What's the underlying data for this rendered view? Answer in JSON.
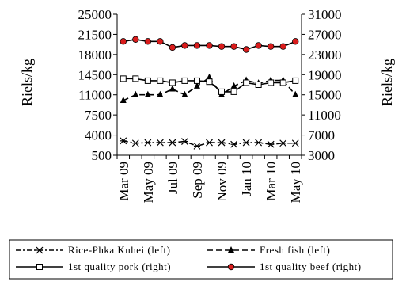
{
  "chart_data": {
    "type": "line",
    "categories": [
      "Mar 09",
      "Apr 09",
      "May 09",
      "Jun 09",
      "Jul 09",
      "Aug 09",
      "Sep 09",
      "Oct 09",
      "Nov 09",
      "Dec 09",
      "Jan 10",
      "Feb 10",
      "Mar 10",
      "Apr 10",
      "May 10"
    ],
    "x_tick_labels": [
      "Mar 09",
      "May 09",
      "Jul 09",
      "Sep 09",
      "Nov 09",
      "Jan 10",
      "Mar 10",
      "May 10"
    ],
    "y_left": {
      "label": "Riels/kg",
      "range": [
        500,
        25000
      ],
      "ticks": [
        "25000",
        "21500",
        "18000",
        "14500",
        "11000",
        "7500",
        "4000",
        "500"
      ]
    },
    "y_right": {
      "label": "Riels/kg",
      "range": [
        3000,
        31000
      ],
      "ticks": [
        "31000",
        "27000",
        "23000",
        "19000",
        "15000",
        "11000",
        "7000",
        "3000"
      ]
    },
    "grid": false,
    "legend_position": "bottom",
    "series": [
      {
        "name": "Rice-Phka Knhei (left)",
        "axis": "left",
        "marker": "star",
        "dash": "dash-dot",
        "color": "#000000",
        "values": [
          3000,
          2600,
          2700,
          2700,
          2700,
          2900,
          2100,
          2700,
          2700,
          2400,
          2700,
          2700,
          2400,
          2600,
          2600
        ]
      },
      {
        "name": "Fresh fish (left)",
        "axis": "left",
        "marker": "triangle",
        "dash": "dash",
        "color": "#000000",
        "values": [
          10000,
          11000,
          11000,
          11000,
          12000,
          11000,
          12500,
          14000,
          11000,
          12500,
          13500,
          13000,
          13500,
          13500,
          11000
        ]
      },
      {
        "name": "1st quality pork (right)",
        "axis": "right",
        "marker": "square",
        "dash": "solid",
        "color": "#000000",
        "values": [
          18200,
          18200,
          17800,
          17800,
          17400,
          17800,
          17800,
          17600,
          15600,
          15600,
          17400,
          17000,
          17400,
          17400,
          17800
        ]
      },
      {
        "name": "1st quality beef (right)",
        "axis": "right",
        "marker": "circle",
        "dash": "solid",
        "color": "#000000",
        "marker_fill": "#d91c1c",
        "values": [
          25600,
          26000,
          25600,
          25600,
          24400,
          24800,
          24800,
          24800,
          24600,
          24600,
          24000,
          24800,
          24600,
          24600,
          25600
        ]
      }
    ]
  }
}
